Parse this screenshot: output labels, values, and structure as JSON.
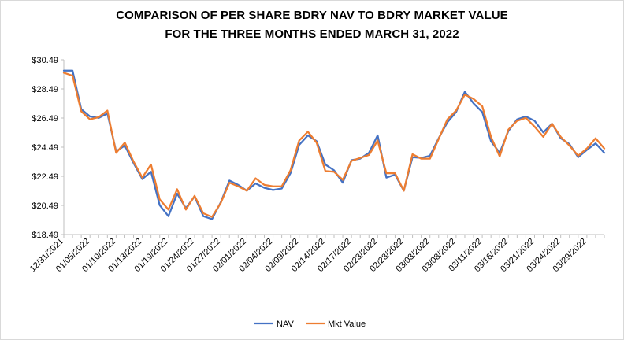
{
  "chart_data": {
    "type": "line",
    "title_lines": [
      "COMPARISON OF PER SHARE BDRY NAV TO BDRY MARKET VALUE",
      "FOR THE THREE MONTHS ENDED MARCH 31, 2022"
    ],
    "xlabel": "",
    "ylabel": "",
    "ylim": [
      18.49,
      30.49
    ],
    "y_ticks": [
      "$18.49",
      "$20.49",
      "$22.49",
      "$24.49",
      "$26.49",
      "$28.49",
      "$30.49"
    ],
    "y_tick_values": [
      18.49,
      20.49,
      22.49,
      24.49,
      26.49,
      28.49,
      30.49
    ],
    "x_tick_labels": [
      "12/31/2021",
      "01/05/2022",
      "01/10/2022",
      "01/13/2022",
      "01/19/2022",
      "01/24/2022",
      "01/27/2022",
      "02/01/2022",
      "02/04/2022",
      "02/09/2022",
      "02/14/2022",
      "02/17/2022",
      "02/23/2022",
      "02/28/2022",
      "03/03/2022",
      "03/08/2022",
      "03/11/2022",
      "03/16/2022",
      "03/21/2022",
      "03/24/2022",
      "03/29/2022"
    ],
    "x_tick_every": 3,
    "grid": false,
    "legend": "bottom",
    "series": [
      {
        "name": "NAV",
        "color": "#4472c4",
        "values": [
          29.75,
          29.75,
          27.1,
          26.6,
          26.5,
          26.8,
          24.2,
          24.6,
          23.4,
          22.3,
          22.8,
          20.5,
          19.75,
          21.3,
          20.3,
          21.1,
          19.75,
          19.55,
          20.7,
          22.2,
          21.9,
          21.5,
          22.0,
          21.7,
          21.55,
          21.65,
          22.7,
          24.65,
          25.3,
          24.9,
          23.3,
          22.9,
          22.05,
          23.6,
          23.7,
          24.1,
          25.3,
          22.4,
          22.6,
          21.5,
          23.8,
          23.75,
          23.9,
          25.1,
          26.2,
          26.9,
          28.3,
          27.5,
          26.9,
          24.9,
          24.1,
          25.6,
          26.4,
          26.6,
          26.3,
          25.5,
          26.1,
          25.1,
          24.7,
          23.8,
          24.3,
          24.75,
          24.1
        ]
      },
      {
        "name": "Mkt Value",
        "color": "#ed7d31",
        "values": [
          29.6,
          29.4,
          26.95,
          26.4,
          26.55,
          27.0,
          24.1,
          24.8,
          23.5,
          22.4,
          23.3,
          20.9,
          20.2,
          21.6,
          20.2,
          21.15,
          19.95,
          19.7,
          20.65,
          22.05,
          21.8,
          21.5,
          22.35,
          21.9,
          21.8,
          21.8,
          22.9,
          24.95,
          25.55,
          24.8,
          22.85,
          22.8,
          22.25,
          23.55,
          23.75,
          23.95,
          24.95,
          22.7,
          22.7,
          21.5,
          24.0,
          23.7,
          23.7,
          25.05,
          26.4,
          27.0,
          28.1,
          27.8,
          27.3,
          25.2,
          23.85,
          25.7,
          26.3,
          26.5,
          25.9,
          25.2,
          26.1,
          25.2,
          24.6,
          23.9,
          24.4,
          25.1,
          24.4
        ]
      }
    ]
  }
}
